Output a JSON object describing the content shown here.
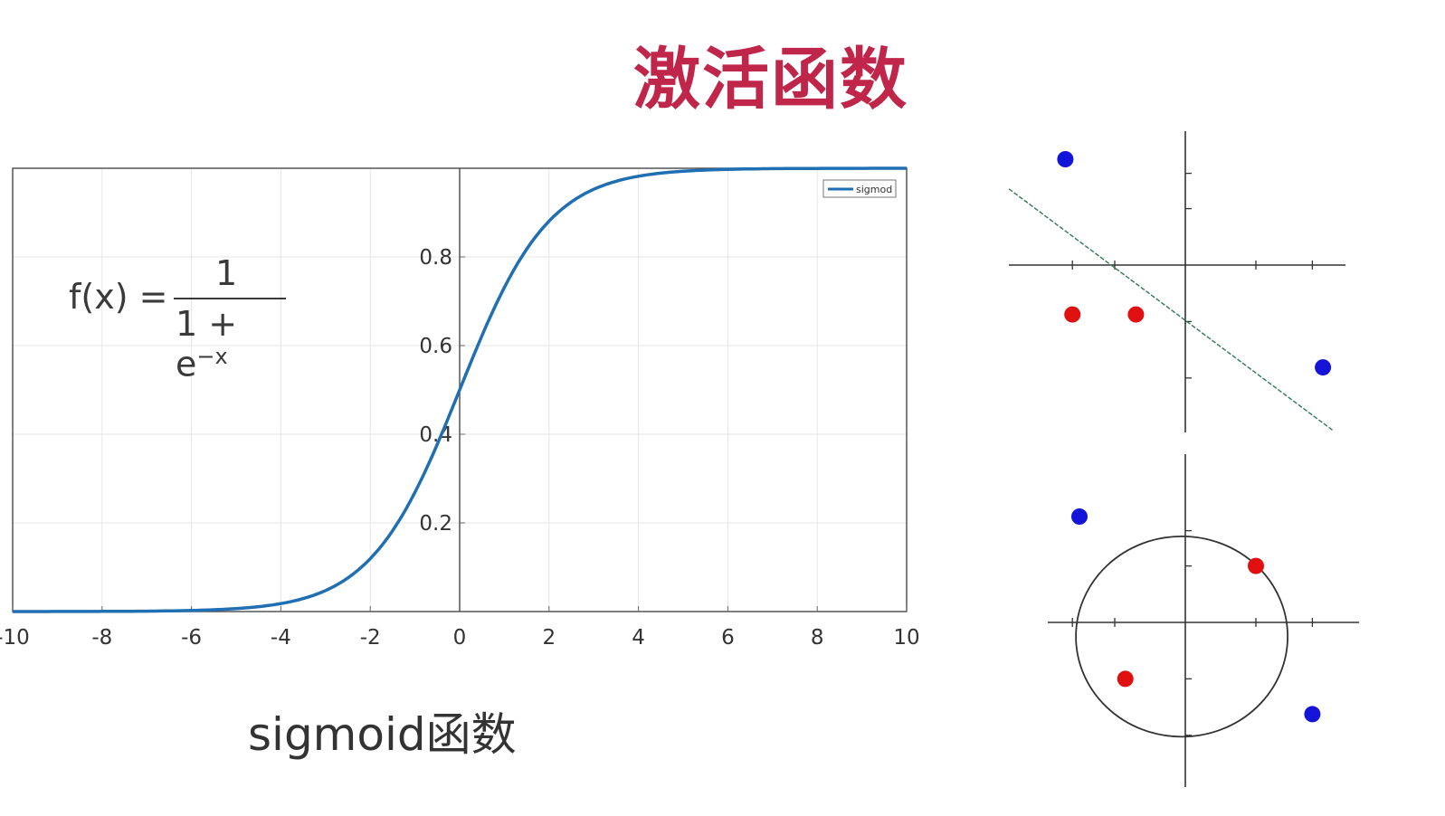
{
  "title": "激活函数",
  "caption": "sigmoid函数",
  "formula": {
    "lhs": "f(x) =",
    "numerator": "1",
    "denominator": "1 + e",
    "exponent": "−x"
  },
  "colors": {
    "title": "#c0254a",
    "curve": "#1f6fb2",
    "grid": "#e6e6e6",
    "red_point": "#e01010",
    "blue_point": "#1414d8",
    "boundary": "#2f7a52"
  },
  "chart_data": [
    {
      "type": "line",
      "x_range": [
        -10,
        10
      ],
      "ylim": [
        0,
        1
      ],
      "grid": true,
      "legend_position": "top-right",
      "x_ticks": [
        "-10",
        "-8",
        "-6",
        "-4",
        "-2",
        "0",
        "2",
        "4",
        "6",
        "8",
        "10"
      ],
      "y_ticks": [
        "0.2",
        "0.4",
        "0.6",
        "0.8"
      ],
      "series": [
        {
          "name": "sigmod",
          "x": [
            -10,
            -9,
            -8,
            -7,
            -6,
            -5,
            -4,
            -3,
            -2,
            -1.5,
            -1,
            -0.5,
            0,
            0.5,
            1,
            1.5,
            2,
            3,
            4,
            5,
            6,
            7,
            8,
            9,
            10
          ],
          "y": [
            5e-05,
            0.00012,
            0.00034,
            0.00091,
            0.0025,
            0.0067,
            0.018,
            0.047,
            0.119,
            0.182,
            0.269,
            0.378,
            0.5,
            0.622,
            0.731,
            0.818,
            0.881,
            0.953,
            0.982,
            0.993,
            0.9975,
            0.9991,
            0.9997,
            0.9999,
            1.0
          ]
        }
      ]
    },
    {
      "type": "scatter",
      "boundary": "line",
      "series": [
        {
          "name": "",
          "color": "blue",
          "x": [
            -1.7,
            1.95
          ],
          "y": [
            1.5,
            -1.45
          ]
        },
        {
          "name": "",
          "color": "red",
          "x": [
            -1.6,
            -0.7
          ],
          "y": [
            -0.7,
            -0.7
          ]
        }
      ]
    },
    {
      "type": "scatter",
      "boundary": "circle",
      "series": [
        {
          "name": "",
          "color": "blue",
          "x": [
            -1.5,
            1.8
          ],
          "y": [
            1.5,
            -1.3
          ]
        },
        {
          "name": "",
          "color": "red",
          "x": [
            1.0,
            -0.85
          ],
          "y": [
            0.8,
            -0.8
          ]
        }
      ]
    }
  ]
}
